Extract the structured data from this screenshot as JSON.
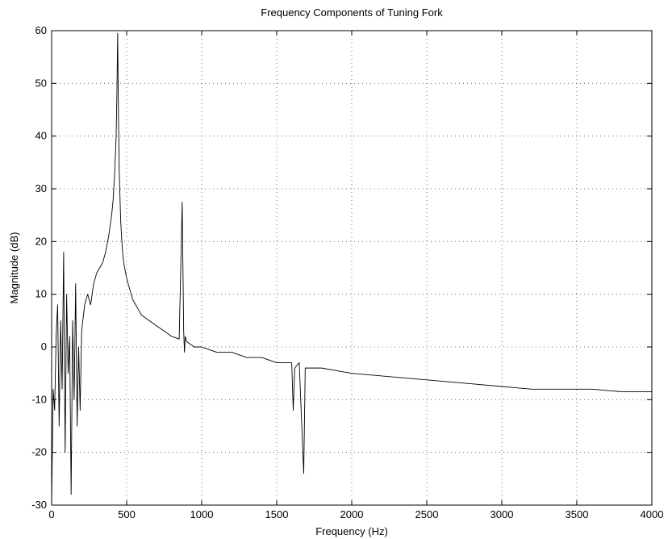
{
  "chart_data": {
    "type": "line",
    "title": "Frequency Components of Tuning Fork",
    "xlabel": "Frequency (Hz)",
    "ylabel": "Magnitude (dB)",
    "xlim": [
      0,
      4000
    ],
    "ylim": [
      -30,
      60
    ],
    "xticks": [
      0,
      500,
      1000,
      1500,
      2000,
      2500,
      3000,
      3500,
      4000
    ],
    "yticks": [
      -30,
      -20,
      -10,
      0,
      10,
      20,
      30,
      40,
      50,
      60
    ],
    "grid": true,
    "series": [
      {
        "color": "#000000",
        "x": [
          0,
          10,
          20,
          30,
          40,
          50,
          60,
          70,
          80,
          90,
          100,
          110,
          120,
          130,
          140,
          150,
          160,
          170,
          180,
          190,
          200,
          220,
          240,
          260,
          280,
          300,
          320,
          340,
          360,
          380,
          400,
          410,
          420,
          430,
          435,
          440,
          445,
          450,
          460,
          470,
          480,
          500,
          520,
          540,
          560,
          600,
          650,
          700,
          750,
          800,
          850,
          870,
          880,
          885,
          890,
          900,
          950,
          1000,
          1100,
          1200,
          1300,
          1400,
          1500,
          1600,
          1610,
          1620,
          1650,
          1680,
          1690,
          1700,
          1800,
          1900,
          2000,
          2200,
          2400,
          2600,
          2800,
          3000,
          3200,
          3400,
          3600,
          3800,
          4000
        ],
        "y": [
          -30,
          -8,
          -12,
          2,
          8,
          -15,
          5,
          -8,
          18,
          -20,
          10,
          -5,
          2,
          -28,
          5,
          -10,
          12,
          -15,
          0,
          -12,
          3,
          8,
          10,
          8,
          12,
          14,
          15,
          16,
          18,
          21,
          25,
          28,
          33,
          40,
          48,
          59.5,
          45,
          34,
          24,
          19,
          16,
          13,
          11,
          9,
          8,
          6,
          5,
          4,
          3,
          2,
          1.5,
          27.5,
          3,
          -1,
          2,
          1,
          0,
          0,
          -1,
          -1,
          -2,
          -2,
          -3,
          -3,
          -12,
          -4,
          -3,
          -24,
          -4,
          -4,
          -4,
          -4.5,
          -5,
          -5.5,
          -6,
          -6.5,
          -7,
          -7.5,
          -8,
          -8,
          -8,
          -8.5,
          -8.5
        ]
      }
    ]
  }
}
